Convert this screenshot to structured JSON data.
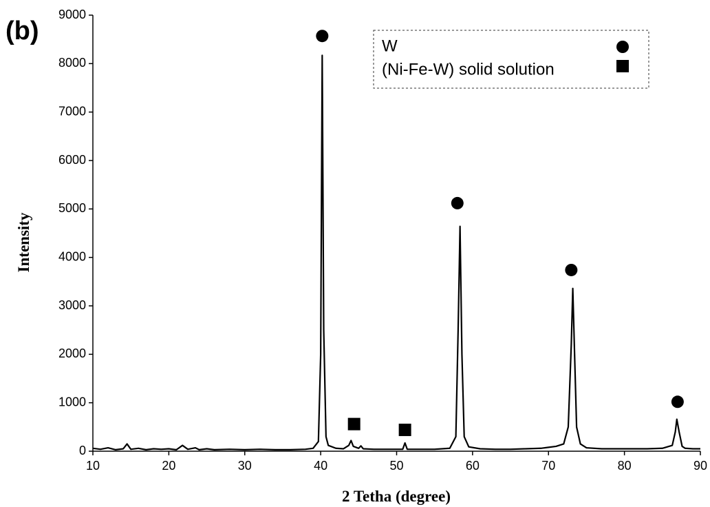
{
  "chart_data": {
    "type": "line",
    "panel_label": "(b)",
    "xlabel": "2 Tetha (degree)",
    "ylabel": "Intensity",
    "xlim": [
      10,
      90
    ],
    "xticks": [
      10,
      20,
      30,
      40,
      50,
      60,
      70,
      80,
      90
    ],
    "ylim": [
      0,
      9000
    ],
    "yticks": [
      0,
      1000,
      2000,
      3000,
      4000,
      5000,
      6000,
      7000,
      8000,
      9000
    ],
    "legend": "upper-right",
    "line": {
      "color": "#000000",
      "x": [
        10,
        11,
        12,
        13,
        14,
        14.5,
        15,
        16,
        17,
        18,
        19,
        20,
        21,
        21.8,
        22.5,
        23.5,
        24,
        25,
        26,
        28,
        30,
        32,
        34,
        36,
        38,
        39,
        39.7,
        40,
        40.2,
        40.4,
        40.7,
        41,
        42,
        43,
        43.7,
        44,
        44.3,
        45,
        45.3,
        45.6,
        47,
        49,
        50.8,
        51.1,
        51.4,
        53,
        55,
        57,
        57.8,
        58.1,
        58.35,
        58.6,
        58.9,
        59.5,
        61,
        63,
        65,
        67,
        69,
        70,
        71,
        72,
        72.6,
        73,
        73.2,
        73.4,
        73.7,
        74.2,
        75,
        77,
        79,
        81,
        83,
        85,
        86.3,
        86.7,
        86.9,
        87.2,
        87.6,
        88,
        89,
        90
      ],
      "values": [
        60,
        40,
        70,
        30,
        50,
        150,
        40,
        60,
        30,
        50,
        40,
        50,
        30,
        120,
        40,
        70,
        30,
        50,
        30,
        40,
        30,
        40,
        30,
        30,
        40,
        60,
        200,
        2000,
        8170,
        2500,
        300,
        120,
        60,
        50,
        120,
        220,
        100,
        60,
        110,
        50,
        40,
        40,
        40,
        170,
        40,
        40,
        40,
        60,
        300,
        2500,
        4640,
        2000,
        300,
        90,
        50,
        40,
        40,
        50,
        60,
        80,
        100,
        150,
        500,
        2200,
        3360,
        2200,
        500,
        150,
        70,
        50,
        50,
        50,
        50,
        60,
        120,
        400,
        660,
        400,
        100,
        60,
        50,
        50
      ]
    },
    "marker_series": [
      {
        "name": "W",
        "marker": "circle",
        "color": "#000000",
        "x": [
          40.2,
          58.0,
          73.0,
          87.0
        ],
        "values": [
          8570,
          5120,
          3740,
          1020
        ]
      },
      {
        "name": "(Ni-Fe-W) solid solution",
        "marker": "square",
        "color": "#000000",
        "x": [
          44.4,
          51.1
        ],
        "values": [
          560,
          440
        ]
      }
    ]
  }
}
